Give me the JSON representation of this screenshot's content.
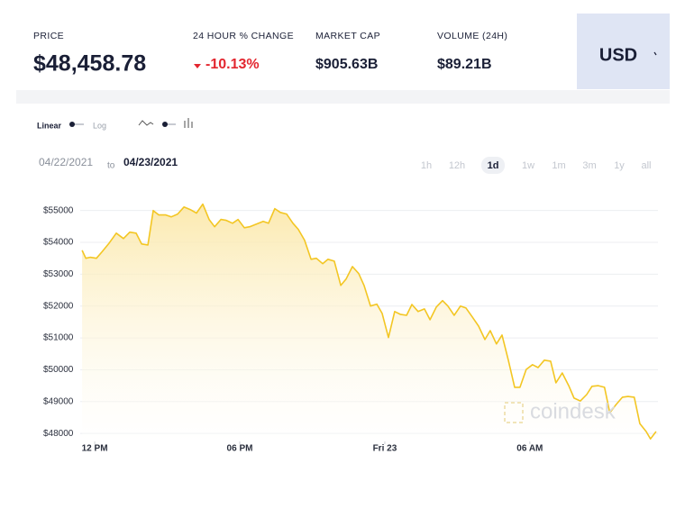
{
  "header": {
    "stats": [
      {
        "label": "PRICE",
        "value": "$48,458.78"
      },
      {
        "label": "24 HOUR % CHANGE",
        "value": "-10.13%"
      },
      {
        "label": "MARKET CAP",
        "value": "$905.63B"
      },
      {
        "label": "VOLUME (24H)",
        "value": "$89.21B"
      }
    ],
    "currency": "USD"
  },
  "controls": {
    "scale": [
      "Linear",
      "Log"
    ],
    "date_range": {
      "from": "04/22/2021",
      "separator": "to",
      "to": "04/23/2021"
    },
    "ranges": [
      "1h",
      "12h",
      "1d",
      "1w",
      "1m",
      "3m",
      "1y",
      "all"
    ],
    "selected_range_index": 2
  },
  "watermark": "coindesk",
  "chart_data": {
    "type": "area",
    "color": "#f3c623",
    "grid": true,
    "x": [
      11.48,
      11.63,
      11.81,
      12.07,
      12.3,
      12.6,
      12.89,
      13.19,
      13.45,
      13.71,
      13.94,
      14.2,
      14.42,
      14.65,
      14.94,
      15.17,
      15.43,
      15.69,
      15.95,
      16.21,
      16.47,
      16.73,
      16.96,
      17.22,
      17.44,
      17.7,
      17.93,
      18.19,
      18.41,
      18.71,
      18.97,
      19.19,
      19.45,
      19.68,
      19.94,
      20.2,
      20.42,
      20.68,
      20.95,
      21.17,
      21.43,
      21.65,
      21.91,
      22.18,
      22.4,
      22.66,
      22.92,
      23.14,
      23.41,
      23.67,
      23.89,
      24.15,
      24.41,
      24.64,
      24.9,
      25.12,
      25.38,
      25.64,
      25.87,
      26.13,
      26.39,
      26.61,
      26.87,
      27.13,
      27.36,
      27.62,
      27.88,
      28.14,
      28.36,
      28.62,
      28.85,
      29.11,
      29.37,
      29.59,
      29.85,
      30.11,
      30.34,
      30.6,
      30.86,
      31.08,
      31.34,
      31.61,
      31.83,
      32.09,
      32.35,
      32.57,
      32.83,
      33.09,
      33.31,
      33.57,
      33.83,
      34.06,
      34.32,
      34.55,
      34.81,
      34.99,
      35.22
    ],
    "values": [
      53750,
      53500,
      53530,
      53500,
      53700,
      53980,
      54290,
      54120,
      54320,
      54290,
      53950,
      53920,
      55000,
      54860,
      54860,
      54800,
      54890,
      55110,
      55030,
      54920,
      55200,
      54720,
      54490,
      54720,
      54690,
      54600,
      54720,
      54460,
      54490,
      54580,
      54660,
      54600,
      55060,
      54940,
      54890,
      54600,
      54410,
      54070,
      53470,
      53500,
      53330,
      53470,
      53410,
      52650,
      52850,
      53240,
      53020,
      52650,
      52000,
      52060,
      51770,
      51010,
      51830,
      51740,
      51710,
      52050,
      51830,
      51910,
      51570,
      51970,
      52170,
      52000,
      51710,
      52000,
      51940,
      51660,
      51370,
      50950,
      51230,
      50810,
      51090,
      50300,
      49450,
      49450,
      50010,
      50160,
      50070,
      50300,
      50270,
      49590,
      49900,
      49500,
      49110,
      49020,
      49220,
      49480,
      49500,
      49450,
      48650,
      48910,
      49140,
      49160,
      49140,
      48310,
      48060,
      47830,
      48060
    ],
    "xlim": [
      11.4,
      35.3
    ],
    "xticks": [
      {
        "value": 12,
        "label": "12 PM"
      },
      {
        "value": 18,
        "label": "06 PM"
      },
      {
        "value": 24,
        "label": "Fri 23"
      },
      {
        "value": 30,
        "label": "06 AM"
      }
    ],
    "ylim": [
      47750,
      55500
    ],
    "yticks": [
      {
        "value": 48000,
        "label": "$48000"
      },
      {
        "value": 49000,
        "label": "$49000"
      },
      {
        "value": 50000,
        "label": "$50000"
      },
      {
        "value": 51000,
        "label": "$51000"
      },
      {
        "value": 52000,
        "label": "$52000"
      },
      {
        "value": 53000,
        "label": "$53000"
      },
      {
        "value": 54000,
        "label": "$54000"
      },
      {
        "value": 55000,
        "label": "$55000"
      }
    ]
  }
}
